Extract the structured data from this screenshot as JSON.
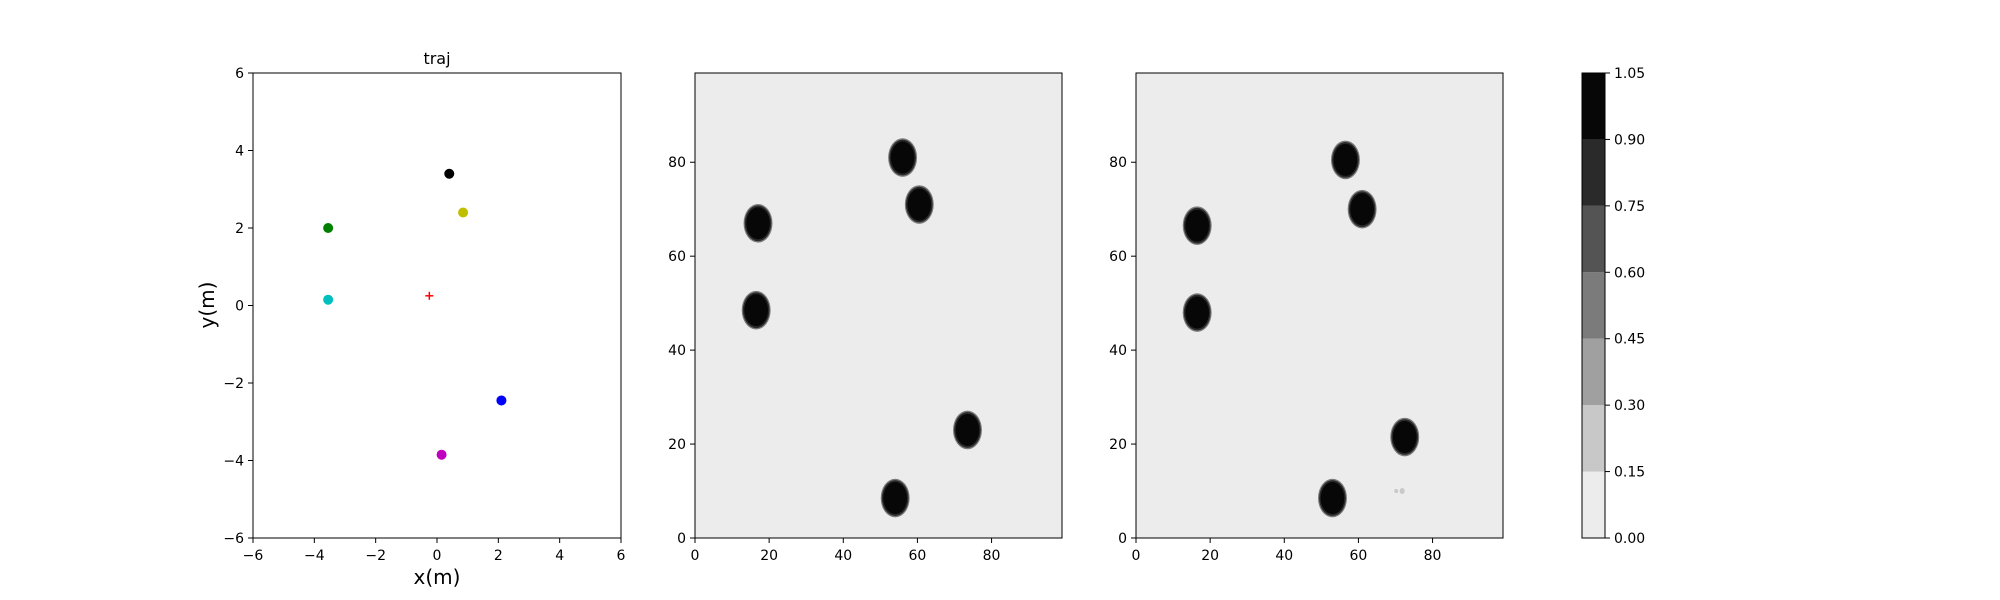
{
  "chart_data": [
    {
      "type": "scatter",
      "title": "traj",
      "xlabel": "x(m)",
      "ylabel": "y(m)",
      "xlim": [
        -6,
        6
      ],
      "ylim": [
        -6,
        6
      ],
      "xticks": [
        "−6",
        "−4",
        "−2",
        "0",
        "2",
        "4",
        "6"
      ],
      "yticks": [
        "−6",
        "−4",
        "−2",
        "0",
        "2",
        "4",
        "6"
      ],
      "grid": false,
      "points": [
        {
          "x": 0.4,
          "y": 3.4,
          "color": "#000000",
          "marker": "dot"
        },
        {
          "x": 0.85,
          "y": 2.4,
          "color": "#bfbf00",
          "marker": "dot"
        },
        {
          "x": -3.55,
          "y": 2.0,
          "color": "#008000",
          "marker": "dot"
        },
        {
          "x": -3.55,
          "y": 0.15,
          "color": "#00bfbf",
          "marker": "dot"
        },
        {
          "x": -0.25,
          "y": 0.25,
          "color": "#ff0000",
          "marker": "plus"
        },
        {
          "x": 2.1,
          "y": -2.45,
          "color": "#0000ff",
          "marker": "dot"
        },
        {
          "x": 0.15,
          "y": -3.85,
          "color": "#bf00bf",
          "marker": "dot"
        }
      ]
    },
    {
      "type": "heatmap",
      "xlim": [
        0,
        99
      ],
      "ylim": [
        0,
        99
      ],
      "xticks": [
        "0",
        "20",
        "40",
        "60",
        "80"
      ],
      "yticks": [
        "0",
        "20",
        "40",
        "60",
        "80"
      ],
      "background_value": 0.0,
      "blobs": [
        {
          "x": 17,
          "y": 67,
          "value": 1.05
        },
        {
          "x": 16.5,
          "y": 48.5,
          "value": 1.05
        },
        {
          "x": 56,
          "y": 81,
          "value": 1.05
        },
        {
          "x": 60.5,
          "y": 71,
          "value": 1.05
        },
        {
          "x": 73.5,
          "y": 23,
          "value": 1.05
        },
        {
          "x": 54,
          "y": 8.5,
          "value": 1.05
        }
      ]
    },
    {
      "type": "heatmap",
      "xlim": [
        0,
        99
      ],
      "ylim": [
        0,
        99
      ],
      "xticks": [
        "0",
        "20",
        "40",
        "60",
        "80"
      ],
      "yticks": [
        "0",
        "20",
        "40",
        "60",
        "80"
      ],
      "background_value": 0.0,
      "blobs": [
        {
          "x": 16.5,
          "y": 66.5,
          "value": 1.05
        },
        {
          "x": 16.5,
          "y": 48,
          "value": 1.05
        },
        {
          "x": 56.5,
          "y": 80.5,
          "value": 1.05
        },
        {
          "x": 61,
          "y": 70,
          "value": 1.05
        },
        {
          "x": 72.5,
          "y": 21.5,
          "value": 1.05
        },
        {
          "x": 53,
          "y": 8.5,
          "value": 1.05
        },
        {
          "x": 71,
          "y": 10,
          "value": 0.2
        }
      ]
    }
  ],
  "colorbar": {
    "levels": [
      0.0,
      0.15,
      0.3,
      0.45,
      0.6,
      0.75,
      0.9,
      1.05
    ],
    "tick_labels": [
      "0.00",
      "0.15",
      "0.30",
      "0.45",
      "0.60",
      "0.75",
      "0.90",
      "1.05"
    ],
    "colors": [
      "#ececec",
      "#c8c8c8",
      "#a0a0a0",
      "#7b7b7b",
      "#545454",
      "#2a2a2a",
      "#070707"
    ]
  }
}
